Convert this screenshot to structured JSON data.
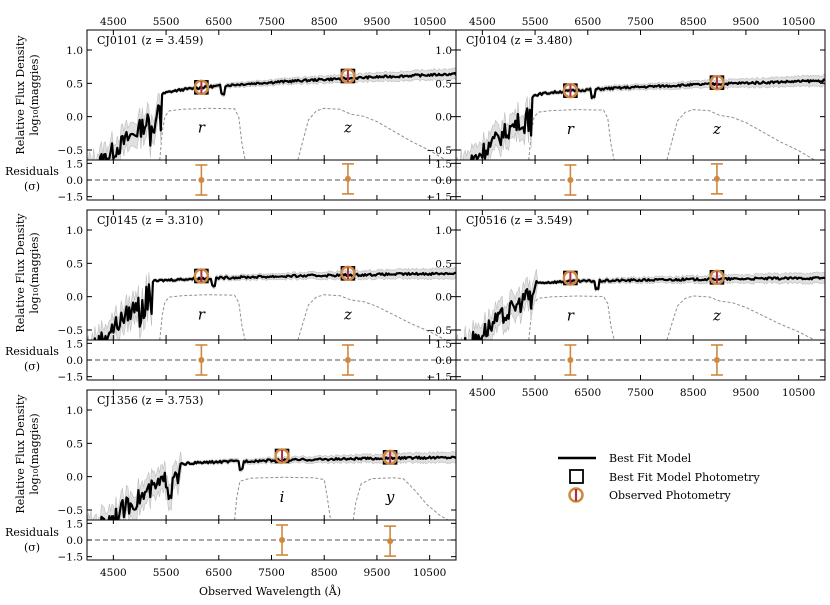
{
  "figure": {
    "xlabel": "Observed Wavelength (Å)",
    "ylabel_line1": "Relative Flux Density",
    "ylabel_line2": "log₁₀(maggies)",
    "reslabel_line1": "Residuals",
    "reslabel_line2": "(σ)"
  },
  "legend": {
    "model": "Best Fit Model",
    "model_phot": "Best Fit Model Photometry",
    "observed": "Observed Photometry"
  },
  "colors": {
    "model": "#000000",
    "band": "#e0e0e0",
    "observed": "#d08840",
    "observed_inner": "#b03040",
    "filter": "#909090",
    "dashed": "#555555"
  },
  "chart_data": [
    {
      "type": "line",
      "name": "CJ0101",
      "title": "CJ0101 (z = 3.459)",
      "redshift": 3.459,
      "xlim": [
        4000,
        11000
      ],
      "ylim": [
        -0.65,
        1.3
      ],
      "res_ylim": [
        -1.8,
        1.8
      ],
      "xticks": [
        4500,
        5500,
        6500,
        7500,
        8500,
        9500,
        10500
      ],
      "yticks": [
        -0.5,
        0.0,
        0.5,
        1.0
      ],
      "res_yticks": [
        -1.5,
        0.0,
        1.5
      ],
      "bands": [
        "r",
        "z"
      ],
      "lyman_break": 5420,
      "model_level": 0.64,
      "break_level": 0.32,
      "photometry": [
        {
          "band": "r",
          "wavelength": 6170,
          "model": 0.44,
          "observed": 0.44,
          "residual": 0.0,
          "res_err": 1.35
        },
        {
          "band": "z",
          "wavelength": 8950,
          "model": 0.61,
          "observed": 0.61,
          "residual": 0.1,
          "res_err": 1.35
        }
      ]
    },
    {
      "type": "line",
      "name": "CJ0104",
      "title": "CJ0104 (z = 3.480)",
      "redshift": 3.48,
      "xlim": [
        4000,
        11000
      ],
      "ylim": [
        -0.65,
        1.3
      ],
      "res_ylim": [
        -1.8,
        1.8
      ],
      "xticks": [
        4500,
        5500,
        6500,
        7500,
        8500,
        9500,
        10500
      ],
      "yticks": [
        -0.5,
        0.0,
        0.5,
        1.0
      ],
      "res_yticks": [
        -1.5,
        0.0,
        1.5
      ],
      "bands": [
        "r",
        "z"
      ],
      "lyman_break": 5450,
      "model_level": 0.54,
      "break_level": 0.3,
      "photometry": [
        {
          "band": "r",
          "wavelength": 6170,
          "model": 0.39,
          "observed": 0.39,
          "residual": 0.0,
          "res_err": 1.35
        },
        {
          "band": "z",
          "wavelength": 8950,
          "model": 0.51,
          "observed": 0.51,
          "residual": 0.1,
          "res_err": 1.35
        }
      ]
    },
    {
      "type": "line",
      "name": "CJ0145",
      "title": "CJ0145 (z = 3.310)",
      "redshift": 3.31,
      "xlim": [
        4000,
        11000
      ],
      "ylim": [
        -0.65,
        1.3
      ],
      "res_ylim": [
        -1.8,
        1.8
      ],
      "xticks": [
        4500,
        5500,
        6500,
        7500,
        8500,
        9500,
        10500
      ],
      "yticks": [
        -0.5,
        0.0,
        0.5,
        1.0
      ],
      "res_yticks": [
        -1.5,
        0.0,
        1.5
      ],
      "bands": [
        "r",
        "z"
      ],
      "lyman_break": 5240,
      "model_level": 0.35,
      "break_level": 0.22,
      "photometry": [
        {
          "band": "r",
          "wavelength": 6170,
          "model": 0.31,
          "observed": 0.31,
          "residual": 0.0,
          "res_err": 1.35
        },
        {
          "band": "z",
          "wavelength": 8950,
          "model": 0.35,
          "observed": 0.35,
          "residual": 0.0,
          "res_err": 1.35
        }
      ]
    },
    {
      "type": "line",
      "name": "CJ0516",
      "title": "CJ0516 (z = 3.549)",
      "redshift": 3.549,
      "xlim": [
        4000,
        11000
      ],
      "ylim": [
        -0.65,
        1.3
      ],
      "res_ylim": [
        -1.8,
        1.8
      ],
      "xticks": [
        4500,
        5500,
        6500,
        7500,
        8500,
        9500,
        10500
      ],
      "yticks": [
        -0.5,
        0.0,
        0.5,
        1.0
      ],
      "res_yticks": [
        -1.5,
        0.0,
        1.5
      ],
      "bands": [
        "r",
        "z"
      ],
      "lyman_break": 5530,
      "model_level": 0.28,
      "break_level": 0.2,
      "photometry": [
        {
          "band": "r",
          "wavelength": 6170,
          "model": 0.28,
          "observed": 0.28,
          "residual": 0.0,
          "res_err": 1.35
        },
        {
          "band": "z",
          "wavelength": 8950,
          "model": 0.29,
          "observed": 0.29,
          "residual": 0.0,
          "res_err": 1.35
        }
      ]
    },
    {
      "type": "line",
      "name": "CJ1356",
      "title": "CJ1356 (z = 3.753)",
      "redshift": 3.753,
      "xlim": [
        4000,
        11000
      ],
      "ylim": [
        -0.65,
        1.3
      ],
      "res_ylim": [
        -1.8,
        1.8
      ],
      "xticks": [
        4500,
        5500,
        6500,
        7500,
        8500,
        9500,
        10500
      ],
      "yticks": [
        -0.5,
        0.0,
        0.5,
        1.0
      ],
      "res_yticks": [
        -1.5,
        0.0,
        1.5
      ],
      "bands": [
        "i",
        "y"
      ],
      "lyman_break": 5780,
      "model_level": 0.29,
      "break_level": 0.18,
      "photometry": [
        {
          "band": "i",
          "wavelength": 7700,
          "model": 0.31,
          "observed": 0.31,
          "residual": 0.0,
          "res_err": 1.35
        },
        {
          "band": "y",
          "wavelength": 9750,
          "model": 0.29,
          "observed": 0.29,
          "residual": -0.1,
          "res_err": 1.35
        }
      ]
    }
  ]
}
